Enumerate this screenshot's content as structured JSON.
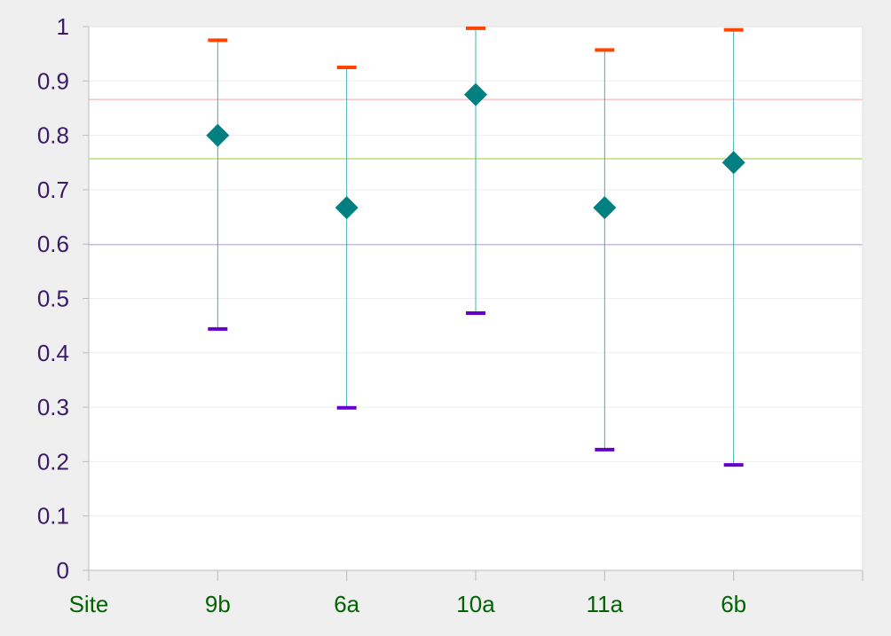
{
  "chart_data": {
    "type": "scatter",
    "title": "",
    "xlabel": "",
    "ylabel": "",
    "first_category_label": "Site",
    "categories": [
      "9b",
      "6a",
      "10a",
      "11a",
      "6b"
    ],
    "point_values": [
      0.8,
      0.667,
      0.875,
      0.667,
      0.75
    ],
    "upper_values": [
      0.975,
      0.925,
      0.997,
      0.957,
      0.994
    ],
    "lower_values": [
      0.444,
      0.299,
      0.473,
      0.222,
      0.194
    ],
    "reference_lines": [
      0.866,
      0.757,
      0.599
    ],
    "y_ticks": [
      "0",
      "0.1",
      "0.2",
      "0.3",
      "0.4",
      "0.5",
      "0.6",
      "0.7",
      "0.8",
      "0.9",
      "1"
    ],
    "ylim": [
      0,
      1
    ],
    "grid": true
  },
  "colors": {
    "background": "#efefef",
    "plot_background": "#ffffff",
    "point_fill": "#008080",
    "upper_tick": "#ff4500",
    "lower_tick": "#6600cc",
    "error_line": "#40b0b0",
    "reference_lines": [
      "#f4a4a4",
      "#9acd32",
      "#b8a0d8"
    ],
    "y_tick_text": "#3a1a6b",
    "x_tick_text": "#006400",
    "axis": "#bbbbbb",
    "gridline": "#eeeeee"
  }
}
